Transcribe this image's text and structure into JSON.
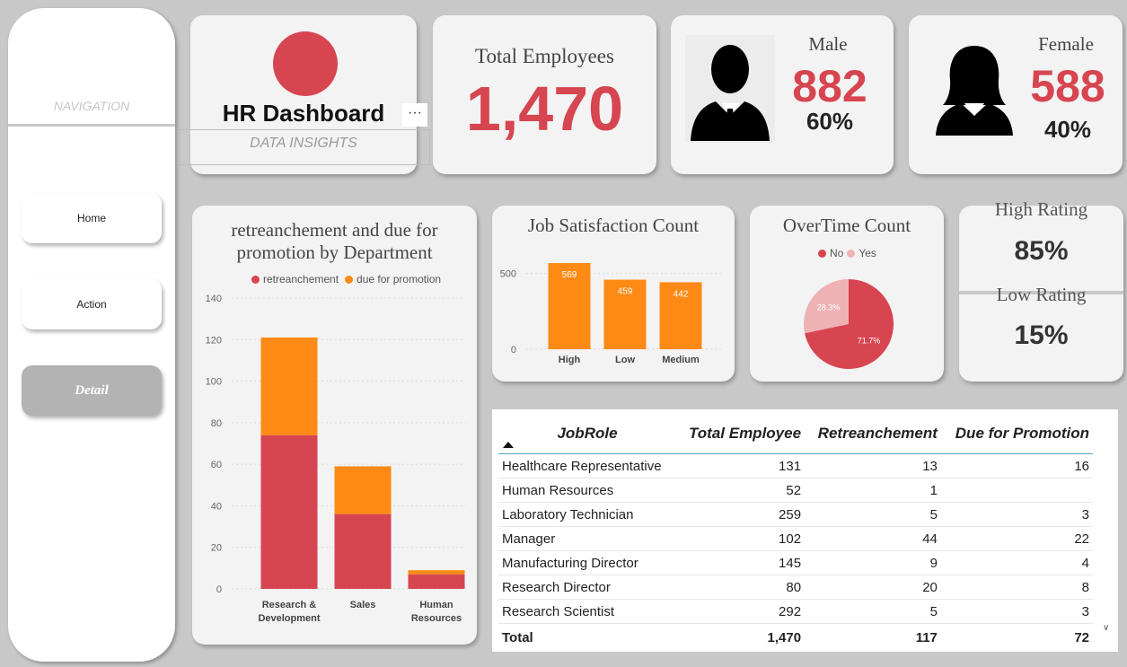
{
  "navigation": {
    "title": "NAVIGATION",
    "items": [
      {
        "label": "Home"
      },
      {
        "label": "Action"
      },
      {
        "label": "Detail"
      }
    ]
  },
  "header": {
    "title": "HR Dashboard",
    "subtitle": "DATA INSIGHTS",
    "more_label": "···"
  },
  "kpis": {
    "total_label": "Total Employees",
    "total_value": "1,470",
    "male_label": "Male",
    "male_value": "882",
    "male_pct": "60%",
    "female_label": "Female",
    "female_value": "588",
    "female_pct": "40%"
  },
  "ratings": {
    "high_label": "High Rating",
    "high_value": "85%",
    "low_label": "Low Rating",
    "low_value": "15%"
  },
  "colors": {
    "red": "#d64550",
    "orange": "#fd8a15",
    "pink": "#eeb2b5"
  },
  "chart_data": [
    {
      "type": "bar",
      "stacked": true,
      "title": "retreanchement and due for promotion by Department",
      "categories": [
        "Research & Development",
        "Sales",
        "Human Resources"
      ],
      "series": [
        {
          "name": "retreanchement",
          "values": [
            74,
            36,
            7
          ]
        },
        {
          "name": "due for promotion",
          "values": [
            47,
            23,
            2
          ]
        }
      ],
      "ylim": [
        0,
        140
      ],
      "yticks": [
        0,
        20,
        40,
        60,
        80,
        100,
        120,
        140
      ],
      "legend": "top"
    },
    {
      "type": "bar",
      "title": "Job Satisfaction Count",
      "categories": [
        "High",
        "Low",
        "Medium"
      ],
      "values": [
        569,
        459,
        442
      ],
      "yticks": [
        0,
        500
      ],
      "ylim": [
        0,
        650
      ]
    },
    {
      "type": "pie",
      "title": "OverTime Count",
      "labels": [
        "No",
        "Yes"
      ],
      "values": [
        71.7,
        28.3
      ],
      "value_labels": [
        "71.7%",
        "28.3%"
      ],
      "legend": "top"
    },
    {
      "type": "table",
      "columns": [
        "JobRole",
        "Total Employee",
        "Retreanchement",
        "Due for Promotion"
      ],
      "rows": [
        [
          "Healthcare Representative",
          "131",
          "13",
          "16"
        ],
        [
          "Human Resources",
          "52",
          "1",
          ""
        ],
        [
          "Laboratory Technician",
          "259",
          "5",
          "3"
        ],
        [
          "Manager",
          "102",
          "44",
          "22"
        ],
        [
          "Manufacturing Director",
          "145",
          "9",
          "4"
        ],
        [
          "Research Director",
          "80",
          "20",
          "8"
        ],
        [
          "Research Scientist",
          "292",
          "5",
          "3"
        ]
      ],
      "total": [
        "Total",
        "1,470",
        "117",
        "72"
      ]
    }
  ]
}
